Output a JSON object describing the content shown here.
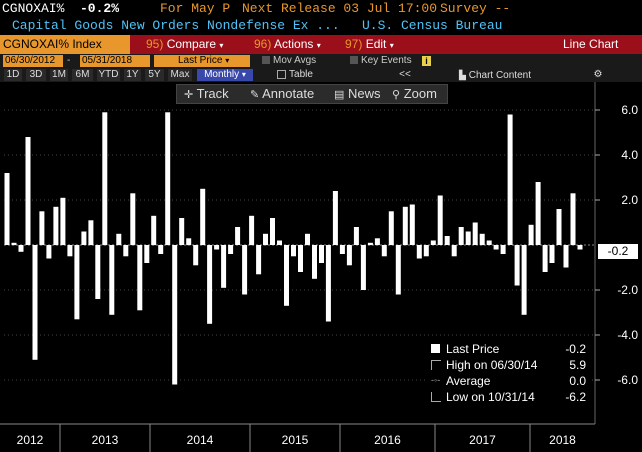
{
  "header": {
    "ticker": "CGNOXAI%",
    "last_value": "-0.2%",
    "for_label": "For May P",
    "next_release": "Next Release 03 Jul 17:00",
    "survey": "Survey --",
    "description": "Capital Goods New Orders Nondefense Ex ...",
    "source": "U.S. Census Bureau"
  },
  "menubar": {
    "security": "CGNOXAI% Index",
    "compare_num": "95)",
    "compare": "Compare",
    "actions_num": "96)",
    "actions": "Actions",
    "edit_num": "97)",
    "edit": "Edit",
    "view": "Line Chart"
  },
  "daterow": {
    "start": "06/30/2012",
    "sep": "-",
    "end": "05/31/2018",
    "field": "Last Price",
    "mov_avgs": "Mov Avgs",
    "key_events": "Key Events",
    "info": "i"
  },
  "periodrow": {
    "buttons": [
      "1D",
      "3D",
      "1M",
      "6M",
      "YTD",
      "1Y",
      "5Y",
      "Max"
    ],
    "frequency": "Monthly",
    "table": "Table",
    "collapse": "<<",
    "chart_content": "Chart Content",
    "settings": "⚙"
  },
  "toolbar": {
    "track": "Track",
    "annotate": "Annotate",
    "news": "News",
    "zoom": "Zoom"
  },
  "legend": {
    "last_price_label": "Last Price",
    "last_price_value": "-0.2",
    "high_label": "High on 06/30/14",
    "high_value": "5.9",
    "average_label": "Average",
    "average_value": "0.0",
    "low_label": "Low on 10/31/14",
    "low_value": "-6.2"
  },
  "value_tag": "-0.2",
  "colors": {
    "accent_orange": "#e8972c",
    "menubar_red": "#9b0f1a",
    "header_cyan": "#4fc3f7",
    "bar": "#ffffff"
  },
  "chart_data": {
    "type": "bar",
    "ylim": [
      -7,
      7
    ],
    "yticks": [
      "6.0",
      "4.0",
      "2.0",
      "-2.0",
      "-4.0",
      "-6.0"
    ],
    "ytick_values": [
      6,
      4,
      2,
      -2,
      -4,
      -6
    ],
    "years": [
      "2012",
      "2013",
      "2014",
      "2015",
      "2016",
      "2017",
      "2018"
    ],
    "grid": true,
    "values": [
      3.2,
      0.1,
      -0.3,
      4.8,
      -5.1,
      1.5,
      -0.6,
      1.7,
      2.1,
      -0.5,
      -3.3,
      0.6,
      1.1,
      -2.4,
      5.9,
      -3.1,
      0.5,
      -0.5,
      2.3,
      -2.9,
      -0.8,
      1.3,
      -0.4,
      5.9,
      -6.2,
      1.2,
      0.3,
      -0.9,
      2.5,
      -3.5,
      -0.2,
      -1.9,
      -0.4,
      0.8,
      -2.2,
      1.3,
      -1.3,
      0.5,
      1.2,
      0.2,
      -2.7,
      -0.5,
      -1.2,
      0.5,
      -1.5,
      -0.8,
      -3.4,
      2.4,
      -0.4,
      -0.9,
      0.8,
      -2.0,
      0.1,
      0.3,
      -0.5,
      1.5,
      -2.2,
      1.7,
      1.8,
      -0.6,
      -0.5,
      0.2,
      2.2,
      0.4,
      -0.5,
      0.8,
      0.6,
      1.0,
      0.5,
      0.2,
      -0.2,
      -0.4,
      5.8,
      -1.8,
      -3.1,
      0.9,
      2.8,
      -1.2,
      -0.8,
      1.6,
      -1.0,
      2.3,
      -0.2
    ]
  }
}
